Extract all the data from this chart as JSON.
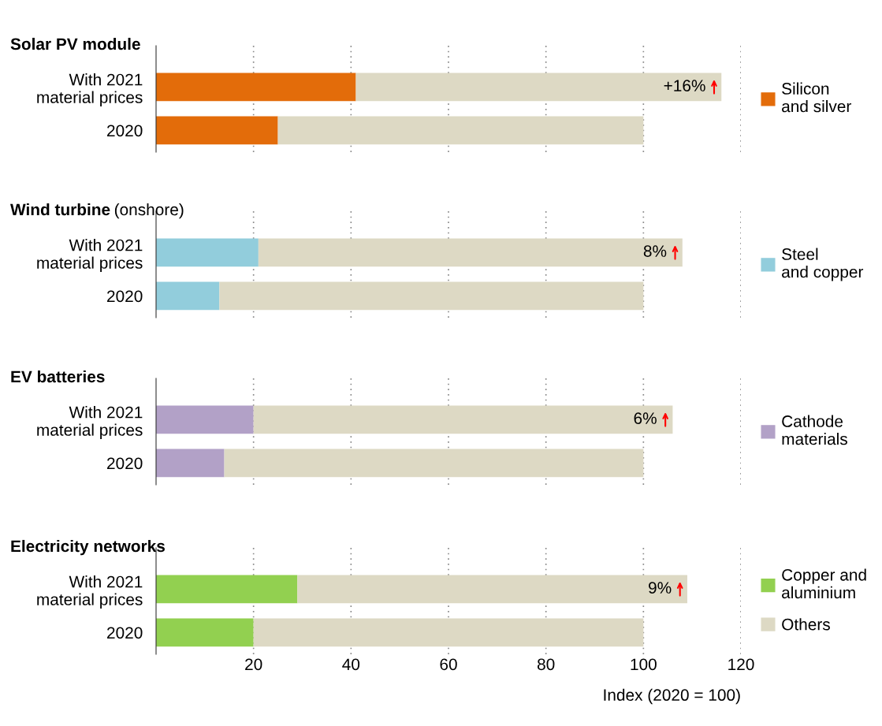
{
  "chart_data": [
    {
      "type": "bar",
      "title": "Solar PV module",
      "orientation": "horizontal",
      "stacked": true,
      "categories": [
        "With 2021\nmaterial prices",
        "2020"
      ],
      "series": [
        {
          "name": "Silicon and silver",
          "color": "#e36c0a",
          "values": [
            41,
            25
          ]
        },
        {
          "color": "#ddd9c4",
          "values": [
            75,
            75
          ]
        }
      ],
      "xlim": [
        0,
        120
      ],
      "xticks": [
        20,
        40,
        60,
        80,
        100,
        120
      ],
      "grid": "x",
      "legend": "right",
      "tick_labels": "y",
      "annotations": [
        {
          "text": "+16%",
          "x": 116,
          "y": "With 2021\nmaterial prices"
        }
      ]
    },
    {
      "type": "bar",
      "title": "Wind turbine",
      "subtitle": "(onshore)",
      "orientation": "horizontal",
      "stacked": true,
      "categories": [
        "With 2021\nmaterial prices",
        "2020"
      ],
      "series": [
        {
          "name": "Steel and copper",
          "color": "#92cddc",
          "values": [
            21,
            13
          ]
        },
        {
          "color": "#ddd9c4",
          "values": [
            87,
            87
          ]
        }
      ],
      "xlim": [
        0,
        120
      ],
      "xticks": [
        20,
        40,
        60,
        80,
        100,
        120
      ],
      "grid": "x",
      "legend": "right",
      "tick_labels": "y",
      "annotations": [
        {
          "text": "8%",
          "x": 108,
          "y": "With 2021\nmaterial prices"
        }
      ]
    },
    {
      "type": "bar",
      "title": "EV batteries",
      "orientation": "horizontal",
      "stacked": true,
      "categories": [
        "With 2021\nmaterial prices",
        "2020"
      ],
      "series": [
        {
          "name": "Cathode materials",
          "color": "#b2a1c7",
          "values": [
            20,
            14
          ]
        },
        {
          "color": "#ddd9c4",
          "values": [
            86,
            86
          ]
        }
      ],
      "xlim": [
        0,
        120
      ],
      "xticks": [
        20,
        40,
        60,
        80,
        100,
        120
      ],
      "grid": "x",
      "legend": "right",
      "tick_labels": "y",
      "annotations": [
        {
          "text": "6%",
          "x": 106,
          "y": "With 2021\nmaterial prices"
        }
      ]
    },
    {
      "type": "bar",
      "title": "Electricity networks",
      "orientation": "horizontal",
      "stacked": true,
      "categories": [
        "With 2021\nmaterial prices",
        "2020"
      ],
      "series": [
        {
          "name": "Copper and aluminium",
          "color": "#92d050",
          "values": [
            29,
            20
          ]
        },
        {
          "name": "Others",
          "color": "#ddd9c4",
          "values": [
            80,
            80
          ]
        }
      ],
      "xlim": [
        0,
        120
      ],
      "xticks": [
        20,
        40,
        60,
        80,
        100,
        120
      ],
      "grid": "x",
      "legend": "right",
      "xlabel": "Index (2020 = 100)",
      "annotations": [
        {
          "text": "9%",
          "x": 109,
          "y": "With 2021\nmaterial prices"
        }
      ]
    }
  ]
}
